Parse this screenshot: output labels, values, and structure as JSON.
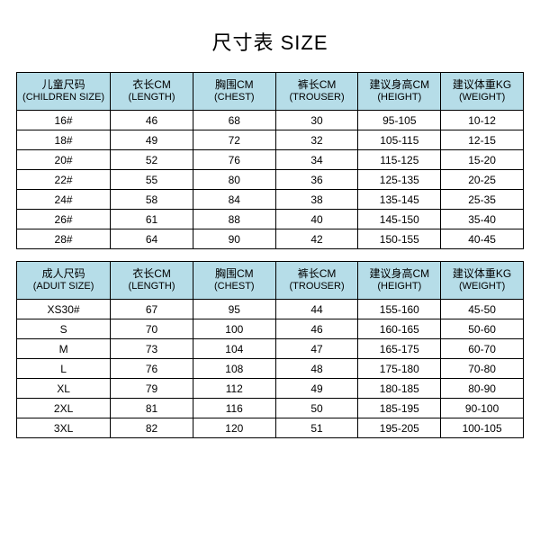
{
  "title": "尺寸表 SIZE",
  "colors": {
    "header_bg": "#b6dde8",
    "border": "#000000",
    "text": "#000000",
    "background": "#ffffff"
  },
  "children_table": {
    "columns": [
      {
        "cn": "儿童尺码",
        "en": "(CHILDREN SIZE)"
      },
      {
        "cn": "衣长CM",
        "en": "(LENGTH)"
      },
      {
        "cn": "胸围CM",
        "en": "(CHEST)"
      },
      {
        "cn": "裤长CM",
        "en": "(TROUSER)"
      },
      {
        "cn": "建议身高CM",
        "en": "(HEIGHT)"
      },
      {
        "cn": "建议体重KG",
        "en": "(WEIGHT)"
      }
    ],
    "rows": [
      [
        "16#",
        "46",
        "68",
        "30",
        "95-105",
        "10-12"
      ],
      [
        "18#",
        "49",
        "72",
        "32",
        "105-115",
        "12-15"
      ],
      [
        "20#",
        "52",
        "76",
        "34",
        "115-125",
        "15-20"
      ],
      [
        "22#",
        "55",
        "80",
        "36",
        "125-135",
        "20-25"
      ],
      [
        "24#",
        "58",
        "84",
        "38",
        "135-145",
        "25-35"
      ],
      [
        "26#",
        "61",
        "88",
        "40",
        "145-150",
        "35-40"
      ],
      [
        "28#",
        "64",
        "90",
        "42",
        "150-155",
        "40-45"
      ]
    ]
  },
  "adult_table": {
    "columns": [
      {
        "cn": "成人尺码",
        "en": "(ADUIT SIZE)"
      },
      {
        "cn": "衣长CM",
        "en": "(LENGTH)"
      },
      {
        "cn": "胸围CM",
        "en": "(CHEST)"
      },
      {
        "cn": "裤长CM",
        "en": "(TROUSER)"
      },
      {
        "cn": "建议身高CM",
        "en": "(HEIGHT)"
      },
      {
        "cn": "建议体重KG",
        "en": "(WEIGHT)"
      }
    ],
    "rows": [
      [
        "XS30#",
        "67",
        "95",
        "44",
        "155-160",
        "45-50"
      ],
      [
        "S",
        "70",
        "100",
        "46",
        "160-165",
        "50-60"
      ],
      [
        "M",
        "73",
        "104",
        "47",
        "165-175",
        "60-70"
      ],
      [
        "L",
        "76",
        "108",
        "48",
        "175-180",
        "70-80"
      ],
      [
        "XL",
        "79",
        "112",
        "49",
        "180-185",
        "80-90"
      ],
      [
        "2XL",
        "81",
        "116",
        "50",
        "185-195",
        "90-100"
      ],
      [
        "3XL",
        "82",
        "120",
        "51",
        "195-205",
        "100-105"
      ]
    ]
  }
}
